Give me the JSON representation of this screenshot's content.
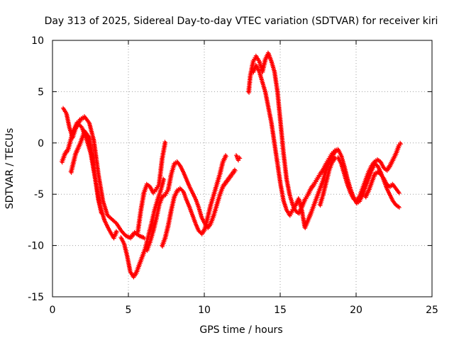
{
  "chart_data": {
    "type": "scatter",
    "title": "Day 313 of 2025, Sidereal Day-to-day VTEC variation (SDTVAR) for receiver kiri",
    "xlabel": "GPS time / hours",
    "ylabel": "SDTVAR / TECUs",
    "xlim": [
      0,
      25
    ],
    "ylim": [
      -15,
      10
    ],
    "xticks": [
      0,
      5,
      10,
      15,
      20,
      25
    ],
    "yticks": [
      -15,
      -10,
      -5,
      0,
      5,
      10
    ],
    "x_tick_labels": [
      "0",
      "5",
      "10",
      "15",
      "20",
      "25"
    ],
    "y_tick_labels": [
      "-15",
      "-10",
      "-5",
      "0",
      "5",
      "10"
    ],
    "grid": true,
    "marker": "+",
    "series": [
      {
        "name": "satellite-track-1",
        "color": "#ff0000",
        "points": [
          [
            0.7,
            3.4
          ],
          [
            0.9,
            2.9
          ],
          [
            1.1,
            1.5
          ],
          [
            1.3,
            0.6
          ],
          [
            1.5,
            1.5
          ],
          [
            1.8,
            2.3
          ],
          [
            2.1,
            2.6
          ],
          [
            2.4,
            2.0
          ],
          [
            2.7,
            0.3
          ],
          [
            3.0,
            -3.0
          ],
          [
            3.3,
            -5.6
          ],
          [
            3.6,
            -7.0
          ],
          [
            3.9,
            -7.4
          ],
          [
            4.2,
            -7.8
          ],
          [
            4.5,
            -8.5
          ],
          [
            4.8,
            -9.0
          ],
          [
            5.1,
            -9.2
          ],
          [
            5.4,
            -8.7
          ],
          [
            5.7,
            -9.0
          ],
          [
            6.0,
            -9.2
          ]
        ]
      },
      {
        "name": "satellite-track-2",
        "color": "#ff0000",
        "points": [
          [
            0.6,
            -1.8
          ],
          [
            0.8,
            -1.0
          ],
          [
            1.0,
            -0.6
          ],
          [
            1.3,
            1.0
          ],
          [
            1.6,
            2.0
          ],
          [
            1.9,
            1.6
          ],
          [
            2.2,
            0.5
          ],
          [
            2.5,
            -1.0
          ],
          [
            2.8,
            -3.5
          ],
          [
            3.1,
            -6.0
          ],
          [
            3.4,
            -7.5
          ],
          [
            3.7,
            -8.4
          ],
          [
            4.0,
            -9.2
          ],
          [
            4.2,
            -8.6
          ]
        ]
      },
      {
        "name": "satellite-track-3",
        "color": "#ff0000",
        "points": [
          [
            1.2,
            -2.8
          ],
          [
            1.5,
            -1.0
          ],
          [
            1.8,
            0.0
          ],
          [
            2.1,
            1.2
          ],
          [
            2.4,
            0.6
          ],
          [
            2.6,
            -1.2
          ],
          [
            2.8,
            -3.5
          ],
          [
            3.0,
            -5.5
          ],
          [
            3.2,
            -6.8
          ]
        ]
      },
      {
        "name": "satellite-track-4",
        "color": "#ff0000",
        "points": [
          [
            4.5,
            -9.2
          ],
          [
            4.7,
            -9.8
          ],
          [
            4.9,
            -11.0
          ],
          [
            5.1,
            -12.5
          ],
          [
            5.3,
            -13.0
          ],
          [
            5.5,
            -12.6
          ],
          [
            5.7,
            -11.8
          ],
          [
            5.9,
            -11.0
          ],
          [
            6.1,
            -10.2
          ],
          [
            6.3,
            -9.0
          ],
          [
            6.5,
            -7.8
          ],
          [
            6.7,
            -6.5
          ],
          [
            6.9,
            -5.5
          ],
          [
            7.1,
            -4.6
          ],
          [
            7.3,
            -3.5
          ]
        ]
      },
      {
        "name": "satellite-track-5",
        "color": "#ff0000",
        "points": [
          [
            5.6,
            -8.6
          ],
          [
            5.8,
            -6.5
          ],
          [
            6.0,
            -4.8
          ],
          [
            6.2,
            -4.0
          ],
          [
            6.4,
            -4.2
          ],
          [
            6.6,
            -4.8
          ],
          [
            6.8,
            -4.5
          ],
          [
            7.0,
            -4.0
          ],
          [
            7.2,
            -1.5
          ],
          [
            7.4,
            0.1
          ]
        ]
      },
      {
        "name": "satellite-track-6",
        "color": "#ff0000",
        "points": [
          [
            6.2,
            -10.4
          ],
          [
            6.4,
            -9.6
          ],
          [
            6.6,
            -8.6
          ],
          [
            6.8,
            -7.4
          ],
          [
            7.0,
            -6.0
          ],
          [
            7.2,
            -5.2
          ],
          [
            7.4,
            -5.0
          ],
          [
            7.6,
            -4.5
          ],
          [
            7.8,
            -3.0
          ],
          [
            8.0,
            -2.0
          ],
          [
            8.2,
            -1.8
          ],
          [
            8.4,
            -2.2
          ],
          [
            8.6,
            -2.8
          ],
          [
            8.8,
            -3.5
          ],
          [
            9.0,
            -4.2
          ],
          [
            9.2,
            -4.8
          ],
          [
            9.4,
            -5.4
          ],
          [
            9.6,
            -6.2
          ],
          [
            9.8,
            -7.2
          ],
          [
            10.0,
            -7.8
          ],
          [
            10.2,
            -8.2
          ],
          [
            10.4,
            -7.8
          ],
          [
            10.6,
            -7.0
          ],
          [
            10.8,
            -6.0
          ],
          [
            11.0,
            -5.0
          ],
          [
            11.2,
            -4.2
          ],
          [
            11.4,
            -3.8
          ],
          [
            11.6,
            -3.4
          ],
          [
            11.8,
            -3.0
          ],
          [
            12.0,
            -2.6
          ]
        ]
      },
      {
        "name": "satellite-track-7",
        "color": "#ff0000",
        "points": [
          [
            7.2,
            -10.0
          ],
          [
            7.4,
            -9.2
          ],
          [
            7.6,
            -8.0
          ],
          [
            7.8,
            -6.5
          ],
          [
            8.0,
            -5.2
          ],
          [
            8.2,
            -4.6
          ],
          [
            8.4,
            -4.4
          ],
          [
            8.6,
            -4.7
          ],
          [
            8.8,
            -5.5
          ],
          [
            9.0,
            -6.2
          ],
          [
            9.2,
            -7.0
          ],
          [
            9.4,
            -7.8
          ],
          [
            9.6,
            -8.5
          ],
          [
            9.8,
            -8.8
          ],
          [
            10.0,
            -8.4
          ],
          [
            10.2,
            -7.2
          ],
          [
            10.4,
            -6.0
          ],
          [
            10.6,
            -5.0
          ],
          [
            10.8,
            -4.0
          ],
          [
            11.0,
            -3.0
          ],
          [
            11.2,
            -1.8
          ],
          [
            11.4,
            -1.2
          ]
        ]
      },
      {
        "name": "satellite-track-8",
        "color": "#ff0000",
        "points": [
          [
            12.1,
            -1.2
          ],
          [
            12.2,
            -1.6
          ],
          [
            12.3,
            -1.4
          ]
        ]
      },
      {
        "name": "satellite-track-9",
        "color": "#ff0000",
        "points": [
          [
            12.9,
            5.0
          ],
          [
            13.0,
            6.5
          ],
          [
            13.2,
            8.0
          ],
          [
            13.4,
            8.5
          ],
          [
            13.6,
            8.0
          ],
          [
            13.8,
            7.0
          ],
          [
            14.0,
            8.2
          ],
          [
            14.2,
            8.8
          ],
          [
            14.4,
            8.0
          ],
          [
            14.6,
            7.0
          ],
          [
            14.8,
            5.0
          ],
          [
            15.0,
            2.0
          ],
          [
            15.2,
            -1.0
          ],
          [
            15.4,
            -3.5
          ],
          [
            15.6,
            -5.0
          ],
          [
            15.8,
            -6.0
          ],
          [
            16.0,
            -6.6
          ],
          [
            16.2,
            -6.8
          ],
          [
            16.4,
            -6.2
          ],
          [
            16.6,
            -5.5
          ],
          [
            16.8,
            -5.0
          ],
          [
            17.0,
            -4.4
          ],
          [
            17.2,
            -4.0
          ],
          [
            17.4,
            -3.5
          ],
          [
            17.6,
            -3.0
          ],
          [
            17.8,
            -2.6
          ],
          [
            18.0,
            -2.0
          ],
          [
            18.2,
            -1.5
          ],
          [
            18.4,
            -1.0
          ],
          [
            18.6,
            -0.8
          ]
        ]
      },
      {
        "name": "satellite-track-10",
        "color": "#ff0000",
        "points": [
          [
            13.2,
            7.0
          ],
          [
            13.4,
            7.6
          ],
          [
            13.6,
            7.0
          ],
          [
            13.8,
            6.0
          ],
          [
            14.0,
            5.0
          ],
          [
            14.2,
            3.5
          ],
          [
            14.4,
            2.0
          ],
          [
            14.6,
            0.0
          ],
          [
            14.8,
            -2.0
          ],
          [
            15.0,
            -4.0
          ],
          [
            15.2,
            -5.6
          ],
          [
            15.4,
            -6.5
          ],
          [
            15.6,
            -7.0
          ],
          [
            15.8,
            -6.5
          ],
          [
            16.0,
            -6.0
          ],
          [
            16.2,
            -5.4
          ],
          [
            16.4,
            -6.5
          ],
          [
            16.6,
            -8.2
          ],
          [
            16.8,
            -7.5
          ],
          [
            17.0,
            -6.8
          ],
          [
            17.2,
            -6.0
          ],
          [
            17.4,
            -5.2
          ],
          [
            17.6,
            -4.4
          ],
          [
            17.8,
            -3.6
          ],
          [
            18.0,
            -2.6
          ],
          [
            18.2,
            -1.8
          ],
          [
            18.4,
            -1.2
          ],
          [
            18.6,
            -0.7
          ],
          [
            18.8,
            -0.6
          ],
          [
            19.0,
            -1.2
          ],
          [
            19.2,
            -2.2
          ],
          [
            19.4,
            -3.4
          ],
          [
            19.6,
            -4.4
          ],
          [
            19.8,
            -5.2
          ],
          [
            20.0,
            -5.8
          ],
          [
            20.2,
            -5.6
          ],
          [
            20.4,
            -5.0
          ],
          [
            20.6,
            -4.2
          ],
          [
            20.8,
            -3.4
          ],
          [
            21.0,
            -2.6
          ],
          [
            21.2,
            -2.0
          ],
          [
            21.4,
            -2.2
          ],
          [
            21.6,
            -2.8
          ],
          [
            21.8,
            -3.6
          ],
          [
            22.0,
            -4.4
          ],
          [
            22.2,
            -5.0
          ],
          [
            22.4,
            -5.6
          ],
          [
            22.6,
            -6.0
          ],
          [
            22.8,
            -6.2
          ]
        ]
      },
      {
        "name": "satellite-track-11",
        "color": "#ff0000",
        "points": [
          [
            17.6,
            -6.0
          ],
          [
            17.8,
            -5.0
          ],
          [
            18.0,
            -3.8
          ],
          [
            18.2,
            -2.6
          ],
          [
            18.4,
            -1.8
          ],
          [
            18.6,
            -1.4
          ],
          [
            18.8,
            -1.4
          ],
          [
            19.0,
            -2.0
          ],
          [
            19.2,
            -3.0
          ],
          [
            19.4,
            -4.0
          ],
          [
            19.6,
            -4.8
          ],
          [
            19.8,
            -5.4
          ],
          [
            20.0,
            -5.6
          ],
          [
            20.2,
            -5.2
          ],
          [
            20.4,
            -4.4
          ],
          [
            20.6,
            -3.6
          ],
          [
            20.8,
            -2.8
          ],
          [
            21.0,
            -2.2
          ],
          [
            21.2,
            -1.8
          ],
          [
            21.4,
            -1.6
          ],
          [
            21.6,
            -1.8
          ],
          [
            21.8,
            -2.4
          ],
          [
            22.0,
            -2.6
          ],
          [
            22.2,
            -2.2
          ],
          [
            22.4,
            -1.6
          ],
          [
            22.6,
            -1.0
          ],
          [
            22.8,
            -0.2
          ],
          [
            22.9,
            0.0
          ]
        ]
      },
      {
        "name": "satellite-track-12",
        "color": "#ff0000",
        "points": [
          [
            20.6,
            -5.2
          ],
          [
            20.8,
            -4.6
          ],
          [
            21.0,
            -3.8
          ],
          [
            21.2,
            -3.0
          ],
          [
            21.4,
            -2.8
          ],
          [
            21.6,
            -3.0
          ],
          [
            21.8,
            -3.4
          ],
          [
            22.0,
            -4.0
          ],
          [
            22.2,
            -4.2
          ],
          [
            22.4,
            -4.0
          ],
          [
            22.6,
            -4.4
          ],
          [
            22.8,
            -4.8
          ]
        ]
      }
    ]
  }
}
